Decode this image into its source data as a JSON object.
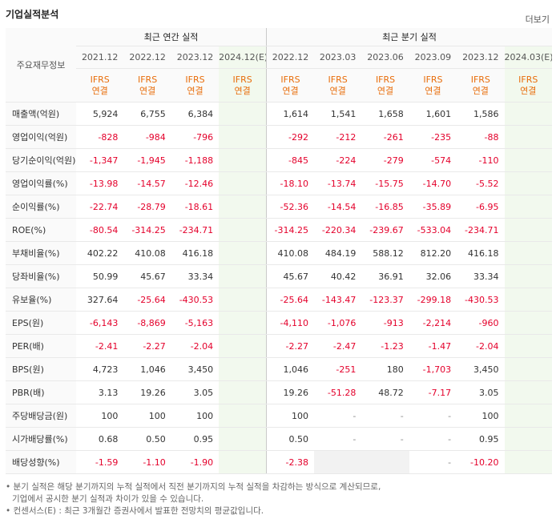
{
  "header": {
    "title": "기업실적분석",
    "more": "더보기"
  },
  "table": {
    "corner": "주요재무정보",
    "groups": [
      {
        "label": "최근 연간 실적",
        "span": 4
      },
      {
        "label": "최근 분기 실적",
        "span": 6
      }
    ],
    "periods": [
      "2021.12",
      "2022.12",
      "2023.12",
      "2024.12(E)",
      "2022.12",
      "2023.03",
      "2023.06",
      "2023.09",
      "2023.12",
      "2024.03(E)"
    ],
    "estimated": [
      false,
      false,
      false,
      true,
      false,
      false,
      false,
      false,
      false,
      true
    ],
    "standards": [
      [
        "IFRS",
        "연결"
      ],
      [
        "IFRS",
        "연결"
      ],
      [
        "IFRS",
        "연결"
      ],
      [
        "IFRS",
        "연결"
      ],
      [
        "IFRS",
        "연결"
      ],
      [
        "IFRS",
        "연결"
      ],
      [
        "IFRS",
        "연결"
      ],
      [
        "IFRS",
        "연결"
      ],
      [
        "IFRS",
        "연결"
      ],
      [
        "IFRS",
        "연결"
      ]
    ],
    "row_groups": [
      3,
      3,
      3,
      4,
      3
    ],
    "rows": [
      {
        "label": "매출액(억원)",
        "values": [
          "5,924",
          "6,755",
          "6,384",
          null,
          "1,614",
          "1,541",
          "1,658",
          "1,601",
          "1,586",
          null
        ]
      },
      {
        "label": "영업이익(억원)",
        "values": [
          "-828",
          "-984",
          "-796",
          null,
          "-292",
          "-212",
          "-261",
          "-235",
          "-88",
          null
        ]
      },
      {
        "label": "당기순이익(억원)",
        "values": [
          "-1,347",
          "-1,945",
          "-1,188",
          null,
          "-845",
          "-224",
          "-279",
          "-574",
          "-110",
          null
        ]
      },
      {
        "label": "영업이익률(%)",
        "values": [
          "-13.98",
          "-14.57",
          "-12.46",
          null,
          "-18.10",
          "-13.74",
          "-15.75",
          "-14.70",
          "-5.52",
          null
        ]
      },
      {
        "label": "순이익률(%)",
        "values": [
          "-22.74",
          "-28.79",
          "-18.61",
          null,
          "-52.36",
          "-14.54",
          "-16.85",
          "-35.89",
          "-6.95",
          null
        ]
      },
      {
        "label": "ROE(%)",
        "values": [
          "-80.54",
          "-314.25",
          "-234.71",
          null,
          "-314.25",
          "-220.34",
          "-239.67",
          "-533.04",
          "-234.71",
          null
        ]
      },
      {
        "label": "부채비율(%)",
        "values": [
          "402.22",
          "410.08",
          "416.18",
          null,
          "410.08",
          "484.19",
          "588.12",
          "812.20",
          "416.18",
          null
        ]
      },
      {
        "label": "당좌비율(%)",
        "values": [
          "50.99",
          "45.67",
          "33.34",
          null,
          "45.67",
          "40.42",
          "36.91",
          "32.06",
          "33.34",
          null
        ]
      },
      {
        "label": "유보율(%)",
        "values": [
          "327.64",
          "-25.64",
          "-430.53",
          null,
          "-25.64",
          "-143.47",
          "-123.37",
          "-299.18",
          "-430.53",
          null
        ]
      },
      {
        "label": "EPS(원)",
        "values": [
          "-6,143",
          "-8,869",
          "-5,163",
          null,
          "-4,110",
          "-1,076",
          "-913",
          "-2,214",
          "-960",
          null
        ]
      },
      {
        "label": "PER(배)",
        "values": [
          "-2.41",
          "-2.27",
          "-2.04",
          null,
          "-2.27",
          "-2.47",
          "-1.23",
          "-1.47",
          "-2.04",
          null
        ]
      },
      {
        "label": "BPS(원)",
        "values": [
          "4,723",
          "1,046",
          "3,450",
          null,
          "1,046",
          "-251",
          "180",
          "-1,703",
          "3,450",
          null
        ]
      },
      {
        "label": "PBR(배)",
        "values": [
          "3.13",
          "19.26",
          "3.05",
          null,
          "19.26",
          "-51.28",
          "48.72",
          "-7.17",
          "3.05",
          null
        ]
      },
      {
        "label": "주당배당금(원)",
        "values": [
          "100",
          "100",
          "100",
          null,
          "100",
          "-",
          "-",
          "-",
          "100",
          null
        ]
      },
      {
        "label": "시가배당률(%)",
        "values": [
          "0.68",
          "0.50",
          "0.95",
          null,
          "0.50",
          "-",
          "-",
          "-",
          "0.95",
          null
        ]
      },
      {
        "label": "배당성향(%)",
        "values": [
          "-1.59",
          "-1.10",
          "-1.90",
          null,
          "-2.38",
          null,
          null,
          "-",
          "-10.20",
          null
        ]
      }
    ]
  },
  "notes": [
    [
      "분기 실적은 해당 분기까지의 누적 실적에서 직전 분기까지의 누적 실적을 차감하는 방식으로 계산되므로,",
      "기업에서 공시한 분기 실적과 차이가 있을 수 있습니다."
    ],
    [
      "컨센서스(E) : 최근 3개월간 증권사에서 발표한 전망치의 평균값입니다."
    ]
  ]
}
